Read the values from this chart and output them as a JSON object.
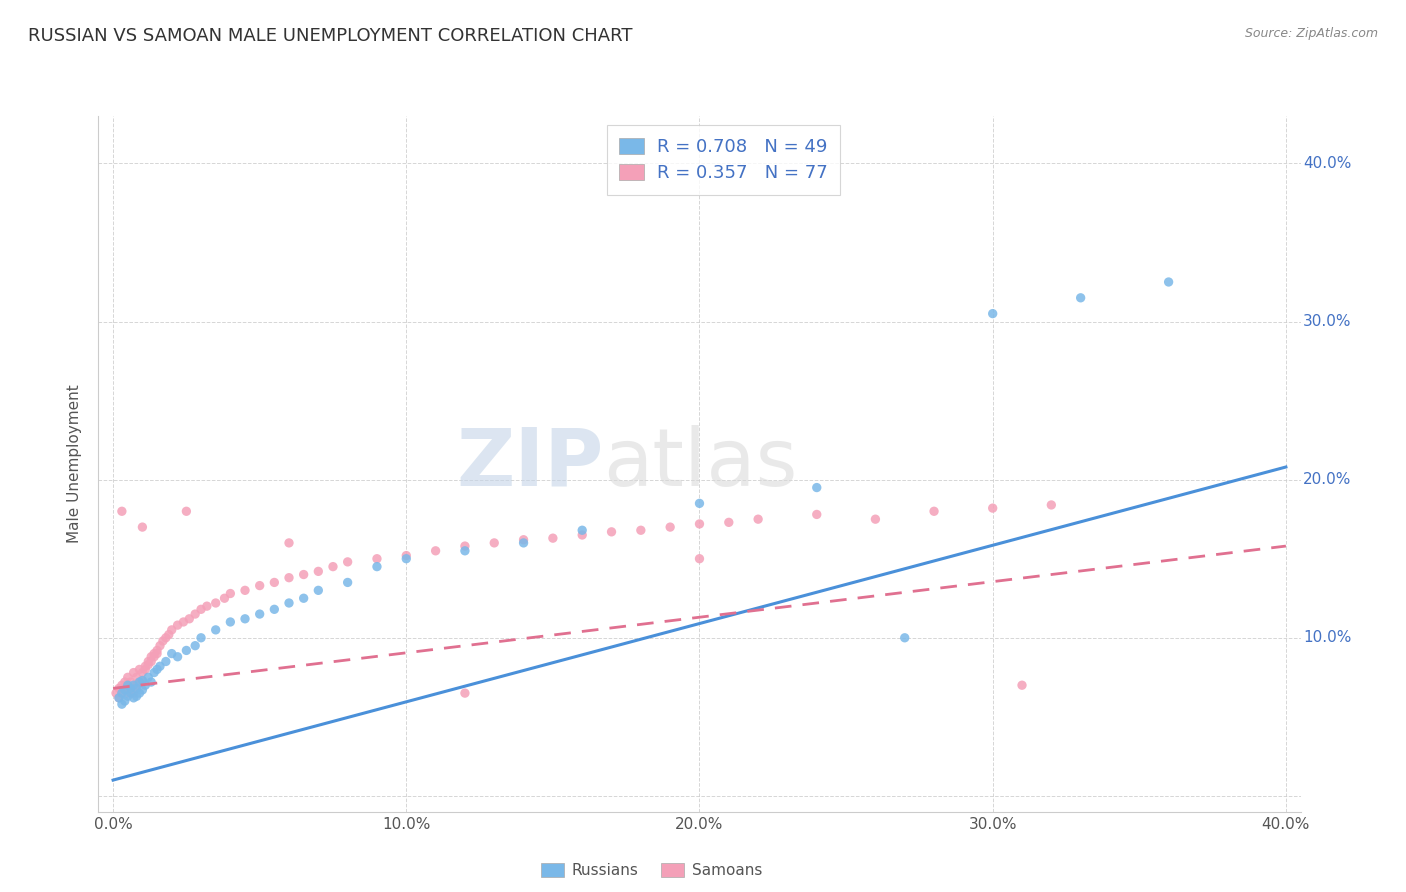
{
  "title": "RUSSIAN VS SAMOAN MALE UNEMPLOYMENT CORRELATION CHART",
  "source": "Source: ZipAtlas.com",
  "ylabel": "Male Unemployment",
  "xlim": [
    -0.005,
    0.405
  ],
  "ylim": [
    -0.01,
    0.43
  ],
  "xticks": [
    0.0,
    0.1,
    0.2,
    0.3,
    0.4
  ],
  "yticks": [
    0.0,
    0.1,
    0.2,
    0.3,
    0.4
  ],
  "xticklabels": [
    "0.0%",
    "10.0%",
    "20.0%",
    "30.0%",
    "40.0%"
  ],
  "yticklabels_right": [
    "40.0%",
    "30.0%",
    "20.0%",
    "10.0%"
  ],
  "russian_R": 0.708,
  "russian_N": 49,
  "samoan_R": 0.357,
  "samoan_N": 77,
  "russian_color": "#7ab8e8",
  "samoan_color": "#f4a0b8",
  "russian_line_color": "#4a90d9",
  "samoan_line_color": "#e07090",
  "background_color": "#ffffff",
  "watermark_zip": "ZIP",
  "watermark_atlas": "atlas",
  "title_color": "#333333",
  "title_fontsize": 13,
  "legend_color": "#4472c4",
  "russians_x": [
    0.002,
    0.003,
    0.003,
    0.004,
    0.004,
    0.005,
    0.005,
    0.006,
    0.006,
    0.007,
    0.007,
    0.008,
    0.008,
    0.009,
    0.009,
    0.01,
    0.01,
    0.011,
    0.012,
    0.013,
    0.014,
    0.015,
    0.016,
    0.018,
    0.02,
    0.022,
    0.025,
    0.028,
    0.03,
    0.035,
    0.04,
    0.045,
    0.05,
    0.055,
    0.06,
    0.065,
    0.07,
    0.08,
    0.09,
    0.1,
    0.12,
    0.14,
    0.16,
    0.2,
    0.24,
    0.27,
    0.3,
    0.33,
    0.36
  ],
  "russians_y": [
    0.062,
    0.065,
    0.058,
    0.06,
    0.067,
    0.063,
    0.07,
    0.065,
    0.068,
    0.062,
    0.07,
    0.068,
    0.063,
    0.072,
    0.065,
    0.067,
    0.073,
    0.07,
    0.075,
    0.072,
    0.078,
    0.08,
    0.082,
    0.085,
    0.09,
    0.088,
    0.092,
    0.095,
    0.1,
    0.105,
    0.11,
    0.112,
    0.115,
    0.118,
    0.122,
    0.125,
    0.13,
    0.135,
    0.145,
    0.15,
    0.155,
    0.16,
    0.168,
    0.185,
    0.195,
    0.1,
    0.305,
    0.315,
    0.325
  ],
  "samoans_x": [
    0.001,
    0.002,
    0.002,
    0.003,
    0.003,
    0.004,
    0.004,
    0.005,
    0.005,
    0.006,
    0.006,
    0.007,
    0.007,
    0.008,
    0.008,
    0.009,
    0.009,
    0.01,
    0.01,
    0.011,
    0.011,
    0.012,
    0.012,
    0.013,
    0.013,
    0.014,
    0.014,
    0.015,
    0.015,
    0.016,
    0.017,
    0.018,
    0.019,
    0.02,
    0.022,
    0.024,
    0.026,
    0.028,
    0.03,
    0.032,
    0.035,
    0.038,
    0.04,
    0.045,
    0.05,
    0.055,
    0.06,
    0.065,
    0.07,
    0.075,
    0.08,
    0.09,
    0.1,
    0.11,
    0.12,
    0.13,
    0.14,
    0.15,
    0.16,
    0.17,
    0.18,
    0.19,
    0.2,
    0.21,
    0.22,
    0.24,
    0.26,
    0.28,
    0.3,
    0.32,
    0.003,
    0.01,
    0.025,
    0.06,
    0.12,
    0.2,
    0.31
  ],
  "samoans_y": [
    0.065,
    0.068,
    0.062,
    0.07,
    0.065,
    0.072,
    0.068,
    0.065,
    0.075,
    0.068,
    0.072,
    0.065,
    0.078,
    0.07,
    0.075,
    0.072,
    0.08,
    0.073,
    0.078,
    0.08,
    0.082,
    0.085,
    0.083,
    0.088,
    0.085,
    0.09,
    0.088,
    0.092,
    0.09,
    0.095,
    0.098,
    0.1,
    0.102,
    0.105,
    0.108,
    0.11,
    0.112,
    0.115,
    0.118,
    0.12,
    0.122,
    0.125,
    0.128,
    0.13,
    0.133,
    0.135,
    0.138,
    0.14,
    0.142,
    0.145,
    0.148,
    0.15,
    0.152,
    0.155,
    0.158,
    0.16,
    0.162,
    0.163,
    0.165,
    0.167,
    0.168,
    0.17,
    0.172,
    0.173,
    0.175,
    0.178,
    0.175,
    0.18,
    0.182,
    0.184,
    0.18,
    0.17,
    0.18,
    0.16,
    0.065,
    0.15,
    0.07
  ],
  "russian_line_x0": 0.0,
  "russian_line_y0": 0.01,
  "russian_line_x1": 0.4,
  "russian_line_y1": 0.208,
  "samoan_line_x0": 0.0,
  "samoan_line_y0": 0.068,
  "samoan_line_x1": 0.4,
  "samoan_line_y1": 0.158
}
